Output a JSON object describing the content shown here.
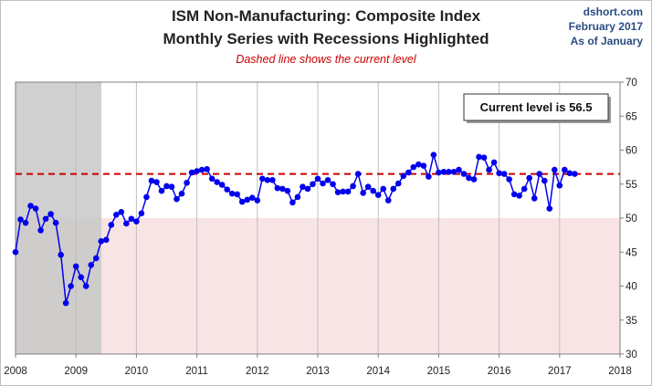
{
  "header": {
    "title_line1": "ISM Non-Manufacturing: Composite Index",
    "title_line2": "Monthly Series with Recessions Highlighted",
    "subtitle": "Dashed line shows the current level",
    "source_line1": "dshort.com",
    "source_line2": "February 2017",
    "source_line3": "As of January"
  },
  "colors": {
    "series": "#0000ee",
    "current_level_line": "#cc0000",
    "recession_shade": "#c8c8c8",
    "below_50_shade": "#f8e4e4"
  },
  "chart_data": {
    "type": "line",
    "title": "ISM Non-Manufacturing: Composite Index",
    "subtitle": "Monthly Series with Recessions Highlighted",
    "annotation": "Current level is 56.5",
    "current_level": 56.5,
    "xlim": [
      2008,
      2018
    ],
    "ylim": [
      30,
      70
    ],
    "x_ticks": [
      "2008",
      "2009",
      "2010",
      "2011",
      "2012",
      "2013",
      "2014",
      "2015",
      "2016",
      "2017",
      "2018"
    ],
    "y_ticks": [
      "30",
      "35",
      "40",
      "45",
      "50",
      "55",
      "60",
      "65",
      "70"
    ],
    "y_axis_side": "right",
    "recession": [
      2008.0,
      2009.42
    ],
    "below_threshold": 50,
    "grid": "vertical lines at years",
    "series": [
      {
        "start": "2008-01",
        "values": [
          45.0,
          49.8,
          49.3,
          51.8,
          51.4,
          48.2,
          49.9,
          50.6,
          49.3,
          44.6,
          37.5,
          40.0,
          42.9,
          41.3,
          40.0,
          43.1,
          44.1,
          46.6,
          46.8,
          49.0,
          50.5,
          50.9,
          49.2,
          49.9,
          49.5,
          50.7,
          53.1,
          55.5,
          55.3,
          54.0,
          54.7,
          54.6,
          52.8,
          53.6,
          55.2,
          56.7,
          56.9,
          57.1,
          57.2,
          55.8,
          55.3,
          54.9,
          54.2,
          53.6,
          53.5,
          52.4,
          52.7,
          53.0,
          52.6,
          55.8,
          55.6,
          55.6,
          54.4,
          54.3,
          54.0,
          52.3,
          53.1,
          54.6,
          54.3,
          55.0,
          55.8,
          55.1,
          55.6,
          55.0,
          53.8,
          53.9,
          53.9,
          54.7,
          56.5,
          53.7,
          54.6,
          54.0,
          53.4,
          54.3,
          52.6,
          54.3,
          55.1,
          56.2,
          56.7,
          57.5,
          57.9,
          57.7,
          56.1,
          59.3,
          56.7,
          56.8,
          56.8,
          56.8,
          57.1,
          56.5,
          55.9,
          55.7,
          59.0,
          58.9,
          57.1,
          58.2,
          56.6,
          56.5,
          55.7,
          53.5,
          53.3,
          54.3,
          55.9,
          52.9,
          56.5,
          55.5,
          51.4,
          57.1,
          54.8,
          57.1,
          56.6,
          56.5
        ]
      }
    ]
  }
}
